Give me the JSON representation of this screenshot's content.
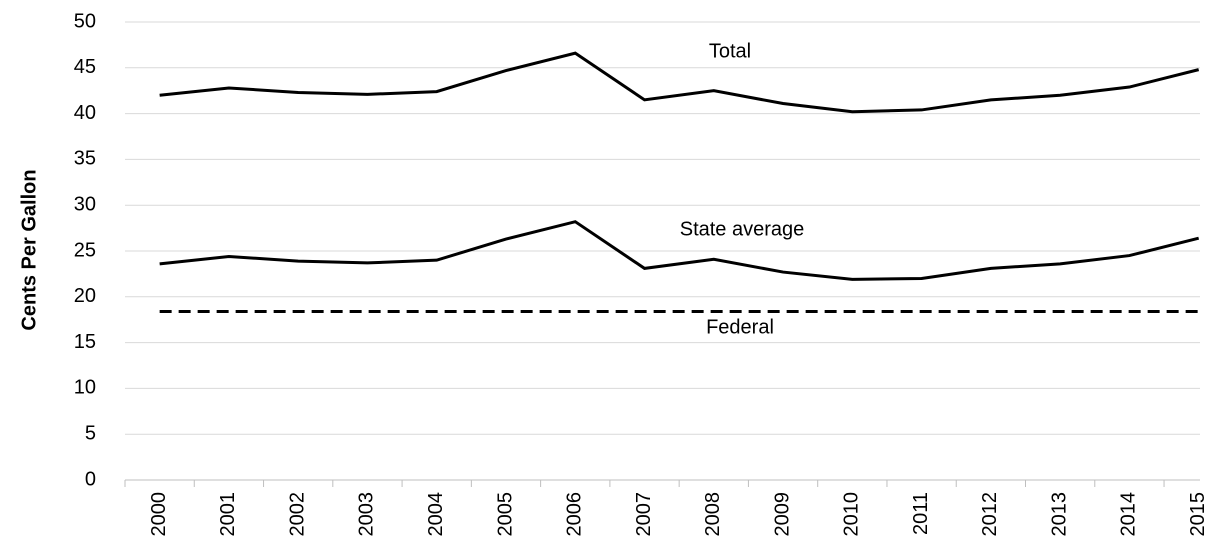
{
  "chart_data": {
    "type": "line",
    "y_label": "Cents Per Gallon",
    "categories": [
      "2000",
      "2001",
      "2002",
      "2003",
      "2004",
      "2005",
      "2006",
      "2007",
      "2008",
      "2009",
      "2010",
      "2011",
      "2012",
      "2013",
      "2014",
      "2015"
    ],
    "series": [
      {
        "name": "Total",
        "color": "#000000",
        "line_style": "solid",
        "values": [
          42.0,
          42.8,
          42.3,
          42.1,
          42.4,
          44.7,
          46.6,
          41.5,
          42.5,
          41.1,
          40.2,
          40.4,
          41.5,
          42.0,
          42.9,
          44.8
        ]
      },
      {
        "name": "State average",
        "color": "#000000",
        "line_style": "solid",
        "values": [
          23.6,
          24.4,
          23.9,
          23.7,
          24.0,
          26.3,
          28.2,
          23.1,
          24.1,
          22.7,
          21.9,
          22.0,
          23.1,
          23.6,
          24.5,
          26.4
        ]
      },
      {
        "name": "Federal",
        "color": "#000000",
        "line_style": "dashed",
        "values": [
          18.4,
          18.4,
          18.4,
          18.4,
          18.4,
          18.4,
          18.4,
          18.4,
          18.4,
          18.4,
          18.4,
          18.4,
          18.4,
          18.4,
          18.4,
          18.4
        ]
      }
    ],
    "ylim": [
      0,
      50
    ],
    "yticks": [
      0,
      5,
      10,
      15,
      20,
      25,
      30,
      35,
      40,
      45,
      50
    ],
    "grid": true
  }
}
